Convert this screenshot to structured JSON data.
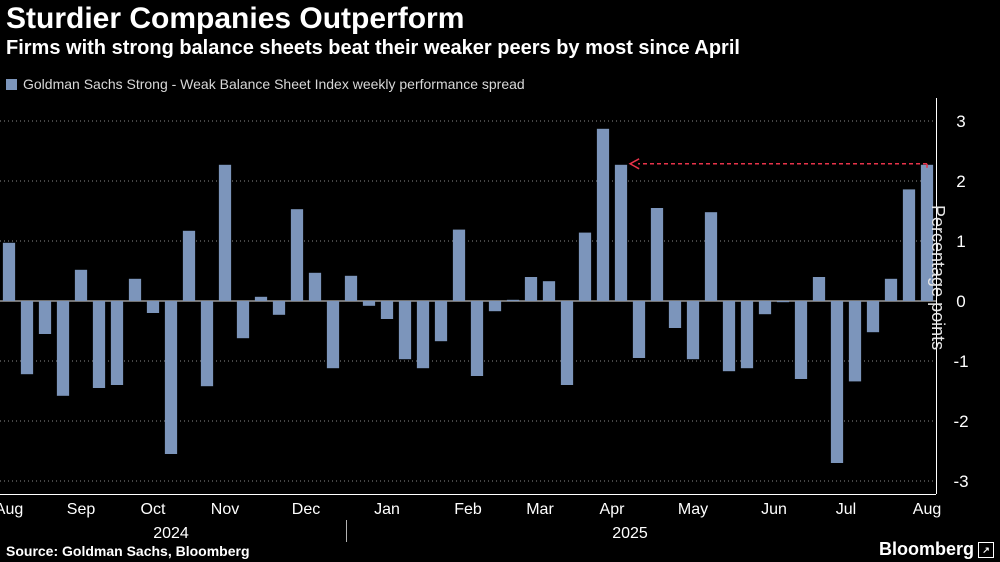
{
  "header": {
    "title": "Sturdier Companies Outperform",
    "subtitle": "Firms with strong balance sheets beat their weaker peers by most since April"
  },
  "footer": {
    "source": "Source: Goldman Sachs, Bloomberg",
    "brand": "Bloomberg"
  },
  "colors": {
    "background": "#000000",
    "bar": "#7c95bb",
    "annotation": "#e8334a",
    "grid": "#ffffff"
  },
  "chart_data": {
    "type": "bar",
    "series": [
      {
        "name": "Goldman Sachs Strong - Weak Balance Sheet Index weekly performance spread",
        "values": [
          0.97,
          -1.22,
          -0.55,
          -1.58,
          0.52,
          -1.45,
          -1.4,
          0.37,
          -0.2,
          -2.55,
          1.17,
          -1.42,
          2.27,
          -0.62,
          0.07,
          -0.23,
          1.53,
          0.47,
          -1.12,
          0.42,
          -0.08,
          -0.3,
          -0.97,
          -1.12,
          -0.67,
          1.19,
          -1.25,
          -0.17,
          0.02,
          0.4,
          0.33,
          -1.4,
          1.14,
          2.87,
          2.27,
          -0.95,
          1.55,
          -0.45,
          -0.97,
          1.48,
          -1.17,
          -1.12,
          -0.22,
          -0.02,
          -1.3,
          0.4,
          -2.7,
          -1.34,
          -0.52,
          0.37,
          1.86,
          2.27
        ]
      }
    ],
    "x_tick_labels": [
      "Aug",
      "Sep",
      "Oct",
      "Nov",
      "Dec",
      "Jan",
      "Feb",
      "Mar",
      "Apr",
      "May",
      "Jun",
      "Jul",
      "Aug"
    ],
    "x_tick_positions": [
      0.5,
      4.5,
      8.5,
      12.5,
      17,
      21.5,
      26,
      30,
      34,
      38.5,
      43,
      47,
      51.5
    ],
    "year_labels": [
      {
        "label": "2024",
        "position": 9.5
      },
      {
        "label": "2025",
        "position": 35
      }
    ],
    "year_divider_position": 19.25,
    "ylabel": "Percentage points",
    "ylim": [
      -3.3,
      3.4
    ],
    "y_ticks": [
      3,
      2,
      1,
      0,
      -1,
      -2,
      -3
    ],
    "y_tick_labels": [
      "3",
      "2",
      "1",
      "0",
      "-1",
      "-2",
      "-3"
    ],
    "zero_line": true,
    "legend_placement": "top-left",
    "annotation": {
      "type": "dashed-arrow",
      "value": 2.27,
      "from_bar": 51,
      "to_bar": 34
    }
  }
}
